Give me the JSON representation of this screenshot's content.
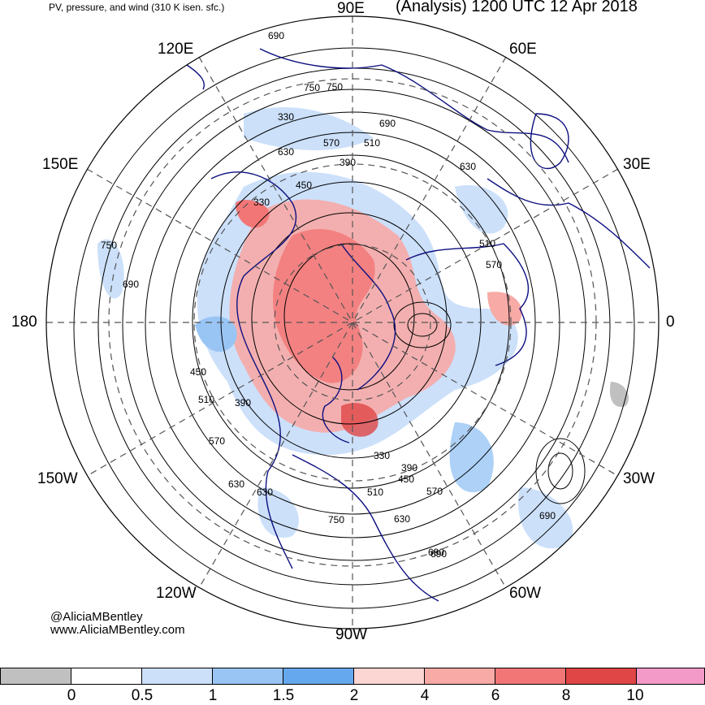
{
  "header": {
    "left_title": "PV, pressure, and wind (310 K isen. sfc.)",
    "right_title": "(Analysis) 1200 UTC 12 Apr 2018"
  },
  "map": {
    "projection": "north-polar-stereographic",
    "longitude_labels": {
      "lon_90E": "90E",
      "lon_60E": "60E",
      "lon_30E": "30E",
      "lon_0": "0",
      "lon_30W": "30W",
      "lon_60W": "60W",
      "lon_90W": "90W",
      "lon_120W": "120W",
      "lon_150W": "150W",
      "lon_180": "180",
      "lon_150E": "150E",
      "lon_120E": "120E"
    },
    "contour_labels": [
      "750",
      "690",
      "630",
      "570",
      "510",
      "450",
      "390",
      "330",
      "750",
      "690",
      "630",
      "570",
      "510",
      "450",
      "390",
      "330",
      "750",
      "690",
      "630",
      "570",
      "510",
      "450",
      "390",
      "330",
      "630",
      "690",
      "750",
      "690",
      "570",
      "510",
      "630",
      "690"
    ],
    "colors": {
      "coastline": "#0d0f80",
      "contour": "#000000",
      "grid": "#555555"
    }
  },
  "credit": {
    "handle": "@AliciaMBentley",
    "website": "www.AliciaMBentley.com"
  },
  "colorbar": {
    "tick_labels": [
      "0",
      "0.5",
      "1",
      "1.5",
      "2",
      "4",
      "6",
      "8",
      "10"
    ],
    "colors": [
      "#c0c0c0",
      "#ffffff",
      "#cce0fa",
      "#99c5f5",
      "#66a8ee",
      "#fbd6d2",
      "#f7aaa6",
      "#f27676",
      "#e04646",
      "#f39ac8"
    ]
  }
}
